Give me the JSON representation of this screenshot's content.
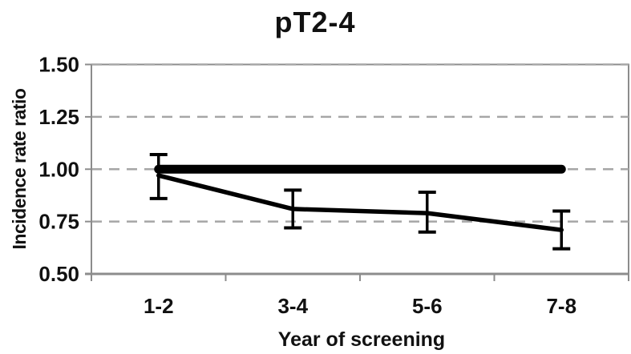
{
  "chart_data": {
    "type": "line",
    "title": "pT2-4",
    "xlabel": "Year of screening",
    "ylabel": "Incidence rate ratio",
    "categories": [
      "1-2",
      "3-4",
      "5-6",
      "7-8"
    ],
    "ytick_labels": [
      "0.50",
      "0.75",
      "1.00",
      "1.25",
      "1.50"
    ],
    "yticks": [
      0.5,
      0.75,
      1.0,
      1.25,
      1.5
    ],
    "ylim": [
      0.5,
      1.5
    ],
    "grid": {
      "horizontal": true,
      "style": "dashed"
    },
    "legend_position": "none",
    "series": [
      {
        "name": "reference-line",
        "line_weight": "thick",
        "values": [
          1.0,
          1.0,
          1.0,
          1.0
        ]
      },
      {
        "name": "incidence-rate-ratio",
        "line_weight": "thin",
        "values": [
          0.97,
          0.81,
          0.79,
          0.71
        ],
        "ci_low": [
          0.86,
          0.72,
          0.7,
          0.62
        ],
        "ci_high": [
          1.07,
          0.9,
          0.89,
          0.8
        ]
      }
    ],
    "colors": {
      "series": "#000000",
      "grid": "#a6a6a6",
      "axis": "#8c8c8c",
      "text": "#111111",
      "background": "#ffffff"
    }
  }
}
